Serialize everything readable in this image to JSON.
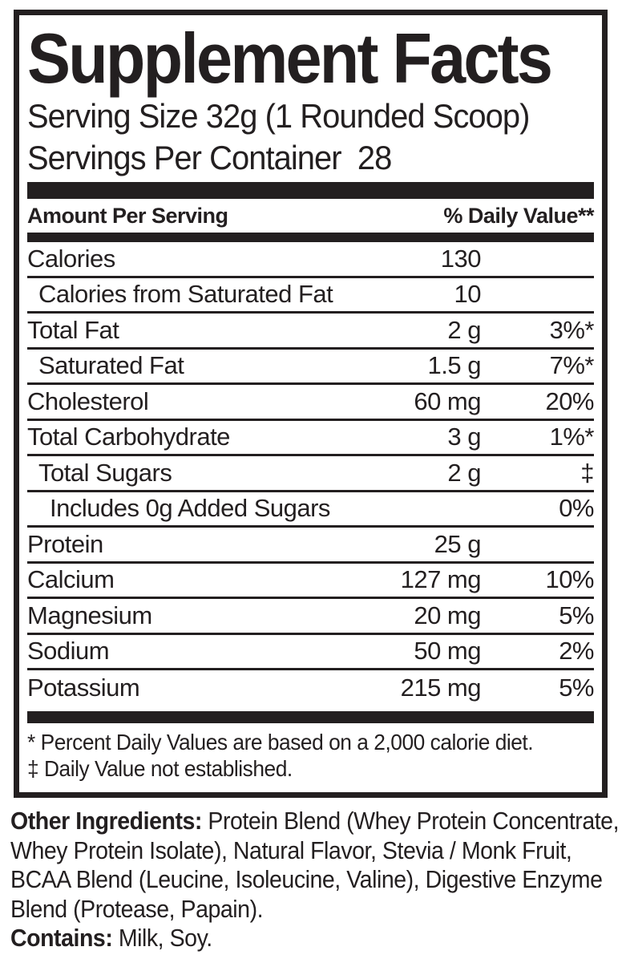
{
  "colors": {
    "ink": "#231f20",
    "background": "#ffffff"
  },
  "panel": {
    "title": "Supplement Facts",
    "serving_size": "Serving Size 32g (1 Rounded Scoop)",
    "servings_per_container": "Servings Per Container  28",
    "column_headers": {
      "amount": "Amount Per Serving",
      "daily_value": "% Daily Value**"
    },
    "rows": [
      {
        "label": "Calories",
        "amount": "130",
        "dv": "",
        "indent": 0
      },
      {
        "label": "Calories from Saturated Fat",
        "amount": "10",
        "dv": "",
        "indent": 1
      },
      {
        "label": "Total Fat",
        "amount": "2 g",
        "dv": "3%*",
        "indent": 0
      },
      {
        "label": "Saturated Fat",
        "amount": "1.5 g",
        "dv": "7%*",
        "indent": 1
      },
      {
        "label": "Cholesterol",
        "amount": "60 mg",
        "dv": "20%",
        "indent": 0
      },
      {
        "label": "Total Carbohydrate",
        "amount": "3 g",
        "dv": "1%*",
        "indent": 0
      },
      {
        "label": "Total Sugars",
        "amount": "2 g",
        "dv": "‡",
        "indent": 1
      },
      {
        "label": "Includes 0g Added Sugars",
        "amount": "",
        "dv": "0%",
        "indent": 2
      },
      {
        "label": "Protein",
        "amount": "25 g",
        "dv": "",
        "indent": 0
      },
      {
        "label": "Calcium",
        "amount": "127 mg",
        "dv": "10%",
        "indent": 0
      },
      {
        "label": "Magnesium",
        "amount": "20 mg",
        "dv": "5%",
        "indent": 0
      },
      {
        "label": "Sodium",
        "amount": "50 mg",
        "dv": "2%",
        "indent": 0
      },
      {
        "label": "Potassium",
        "amount": "215 mg",
        "dv": "5%",
        "indent": 0
      }
    ],
    "footnotes": [
      "* Percent Daily Values are based on a 2,000 calorie diet.",
      "‡ Daily Value not established."
    ]
  },
  "ingredients": {
    "lines": [
      {
        "prefix": "Other Ingredients:",
        "text": " Protein Blend (Whey Protein Concentrate,"
      },
      {
        "prefix": "",
        "text": "Whey Protein Isolate), Natural Flavor, Stevia / Monk Fruit,"
      },
      {
        "prefix": "",
        "text": "BCAA Blend (Leucine, Isoleucine, Valine), Digestive Enzyme"
      },
      {
        "prefix": "",
        "text": "Blend (Protease, Papain)."
      },
      {
        "prefix": "Contains:",
        "text": " Milk, Soy."
      }
    ]
  }
}
